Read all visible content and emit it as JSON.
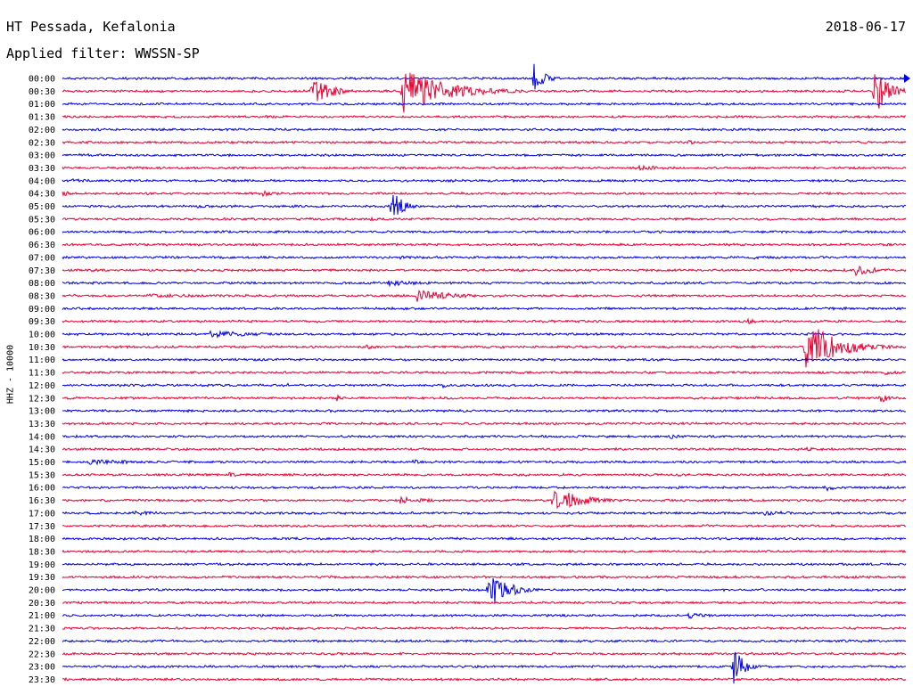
{
  "header": {
    "station": "HT Pessada, Kefalonia",
    "date": "2018-06-17",
    "filter": "Applied filter: WWSSN-SP"
  },
  "channel_label": "HHZ - 10000",
  "chart_data": {
    "type": "helicorder",
    "grid": false,
    "colors": {
      "even_line": "#0000ee",
      "odd_line": "#ee0033"
    },
    "rows": [
      {
        "label": "00:00",
        "color": "#0000ee",
        "events": [
          {
            "t": 0.557,
            "amp": 20,
            "dur": 0.012
          }
        ]
      },
      {
        "label": "00:30",
        "color": "#ee0033",
        "events": [
          {
            "t": 0.295,
            "amp": 20,
            "dur": 0.02
          },
          {
            "t": 0.403,
            "amp": 26,
            "dur": 0.05
          },
          {
            "t": 0.962,
            "amp": 32,
            "dur": 0.015
          }
        ]
      },
      {
        "label": "01:00",
        "color": "#0000ee",
        "events": []
      },
      {
        "label": "01:30",
        "color": "#ee0033",
        "events": []
      },
      {
        "label": "02:00",
        "color": "#0000ee",
        "events": []
      },
      {
        "label": "02:30",
        "color": "#ee0033",
        "events": [
          {
            "t": 0.742,
            "amp": 3,
            "dur": 0.01
          }
        ]
      },
      {
        "label": "03:00",
        "color": "#0000ee",
        "events": []
      },
      {
        "label": "03:30",
        "color": "#ee0033",
        "events": [
          {
            "t": 0.682,
            "amp": 3,
            "dur": 0.05
          }
        ]
      },
      {
        "label": "04:00",
        "color": "#0000ee",
        "events": [
          {
            "t": 0.01,
            "amp": 2,
            "dur": 0.06
          }
        ]
      },
      {
        "label": "04:30",
        "color": "#ee0033",
        "events": [
          {
            "t": 0.0,
            "amp": 3,
            "dur": 0.015
          },
          {
            "t": 0.237,
            "amp": 3,
            "dur": 0.03
          }
        ]
      },
      {
        "label": "05:00",
        "color": "#0000ee",
        "events": [
          {
            "t": 0.39,
            "amp": 22,
            "dur": 0.012
          },
          {
            "t": 0.16,
            "amp": 2,
            "dur": 0.04
          }
        ]
      },
      {
        "label": "05:30",
        "color": "#ee0033",
        "events": [
          {
            "t": 0.365,
            "amp": 2,
            "dur": 0.025
          }
        ]
      },
      {
        "label": "06:00",
        "color": "#0000ee",
        "events": []
      },
      {
        "label": "06:30",
        "color": "#ee0033",
        "events": []
      },
      {
        "label": "07:00",
        "color": "#0000ee",
        "events": [
          {
            "t": 0.4,
            "amp": 2,
            "dur": 0.03
          },
          {
            "t": 0.82,
            "amp": 2,
            "dur": 0.03
          }
        ]
      },
      {
        "label": "07:30",
        "color": "#ee0033",
        "events": [
          {
            "t": 0.03,
            "amp": 2,
            "dur": 0.03
          },
          {
            "t": 0.94,
            "amp": 7,
            "dur": 0.025
          }
        ]
      },
      {
        "label": "08:00",
        "color": "#0000ee",
        "events": [
          {
            "t": 0.385,
            "amp": 4,
            "dur": 0.04
          }
        ]
      },
      {
        "label": "08:30",
        "color": "#ee0033",
        "events": [
          {
            "t": 0.42,
            "amp": 8,
            "dur": 0.04
          },
          {
            "t": 0.1,
            "amp": 2,
            "dur": 0.2
          }
        ]
      },
      {
        "label": "09:00",
        "color": "#0000ee",
        "events": []
      },
      {
        "label": "09:30",
        "color": "#ee0033",
        "events": [
          {
            "t": 0.812,
            "amp": 3,
            "dur": 0.02
          }
        ]
      },
      {
        "label": "10:00",
        "color": "#0000ee",
        "events": [
          {
            "t": 0.175,
            "amp": 4,
            "dur": 0.07
          }
        ]
      },
      {
        "label": "10:30",
        "color": "#ee0033",
        "events": [
          {
            "t": 0.88,
            "amp": 32,
            "dur": 0.035
          },
          {
            "t": 0.36,
            "amp": 3,
            "dur": 0.02
          }
        ]
      },
      {
        "label": "11:00",
        "color": "#0000ee",
        "events": []
      },
      {
        "label": "11:30",
        "color": "#ee0033",
        "events": [
          {
            "t": 0.975,
            "amp": 3,
            "dur": 0.02
          }
        ]
      },
      {
        "label": "12:00",
        "color": "#0000ee",
        "events": [
          {
            "t": 0.265,
            "amp": 3,
            "dur": 0.01
          },
          {
            "t": 0.45,
            "amp": 3,
            "dur": 0.01
          }
        ]
      },
      {
        "label": "12:30",
        "color": "#ee0033",
        "events": [
          {
            "t": 0.325,
            "amp": 4,
            "dur": 0.008
          },
          {
            "t": 0.97,
            "amp": 6,
            "dur": 0.01
          }
        ]
      },
      {
        "label": "13:00",
        "color": "#0000ee",
        "events": []
      },
      {
        "label": "13:30",
        "color": "#ee0033",
        "events": []
      },
      {
        "label": "14:00",
        "color": "#0000ee",
        "events": [
          {
            "t": 0.72,
            "amp": 3,
            "dur": 0.02
          }
        ]
      },
      {
        "label": "14:30",
        "color": "#ee0033",
        "events": [
          {
            "t": 0.88,
            "amp": 3,
            "dur": 0.015
          }
        ]
      },
      {
        "label": "15:00",
        "color": "#0000ee",
        "events": [
          {
            "t": 0.03,
            "amp": 3,
            "dur": 0.08
          },
          {
            "t": 0.415,
            "amp": 3,
            "dur": 0.02
          }
        ]
      },
      {
        "label": "15:30",
        "color": "#ee0033",
        "events": [
          {
            "t": 0.197,
            "amp": 3,
            "dur": 0.015
          },
          {
            "t": 0.73,
            "amp": 2,
            "dur": 0.02
          }
        ]
      },
      {
        "label": "16:00",
        "color": "#0000ee",
        "events": [
          {
            "t": 0.905,
            "amp": 5,
            "dur": 0.012
          }
        ]
      },
      {
        "label": "16:30",
        "color": "#ee0033",
        "events": [
          {
            "t": 0.582,
            "amp": 16,
            "dur": 0.03
          },
          {
            "t": 0.4,
            "amp": 4,
            "dur": 0.04
          }
        ]
      },
      {
        "label": "17:00",
        "color": "#0000ee",
        "events": [
          {
            "t": 0.83,
            "amp": 4,
            "dur": 0.03
          },
          {
            "t": 0.08,
            "amp": 3,
            "dur": 0.05
          }
        ]
      },
      {
        "label": "17:30",
        "color": "#ee0033",
        "events": []
      },
      {
        "label": "18:00",
        "color": "#0000ee",
        "events": []
      },
      {
        "label": "18:30",
        "color": "#ee0033",
        "events": []
      },
      {
        "label": "19:00",
        "color": "#0000ee",
        "events": []
      },
      {
        "label": "19:30",
        "color": "#ee0033",
        "events": []
      },
      {
        "label": "20:00",
        "color": "#0000ee",
        "events": [
          {
            "t": 0.505,
            "amp": 26,
            "dur": 0.02
          }
        ]
      },
      {
        "label": "20:30",
        "color": "#ee0033",
        "events": []
      },
      {
        "label": "21:00",
        "color": "#0000ee",
        "events": [
          {
            "t": 0.742,
            "amp": 4,
            "dur": 0.02
          }
        ]
      },
      {
        "label": "21:30",
        "color": "#ee0033",
        "events": []
      },
      {
        "label": "22:00",
        "color": "#0000ee",
        "events": []
      },
      {
        "label": "22:30",
        "color": "#ee0033",
        "events": []
      },
      {
        "label": "23:00",
        "color": "#0000ee",
        "events": [
          {
            "t": 0.795,
            "amp": 24,
            "dur": 0.012
          }
        ]
      },
      {
        "label": "23:30",
        "color": "#ee0033",
        "events": []
      }
    ]
  }
}
